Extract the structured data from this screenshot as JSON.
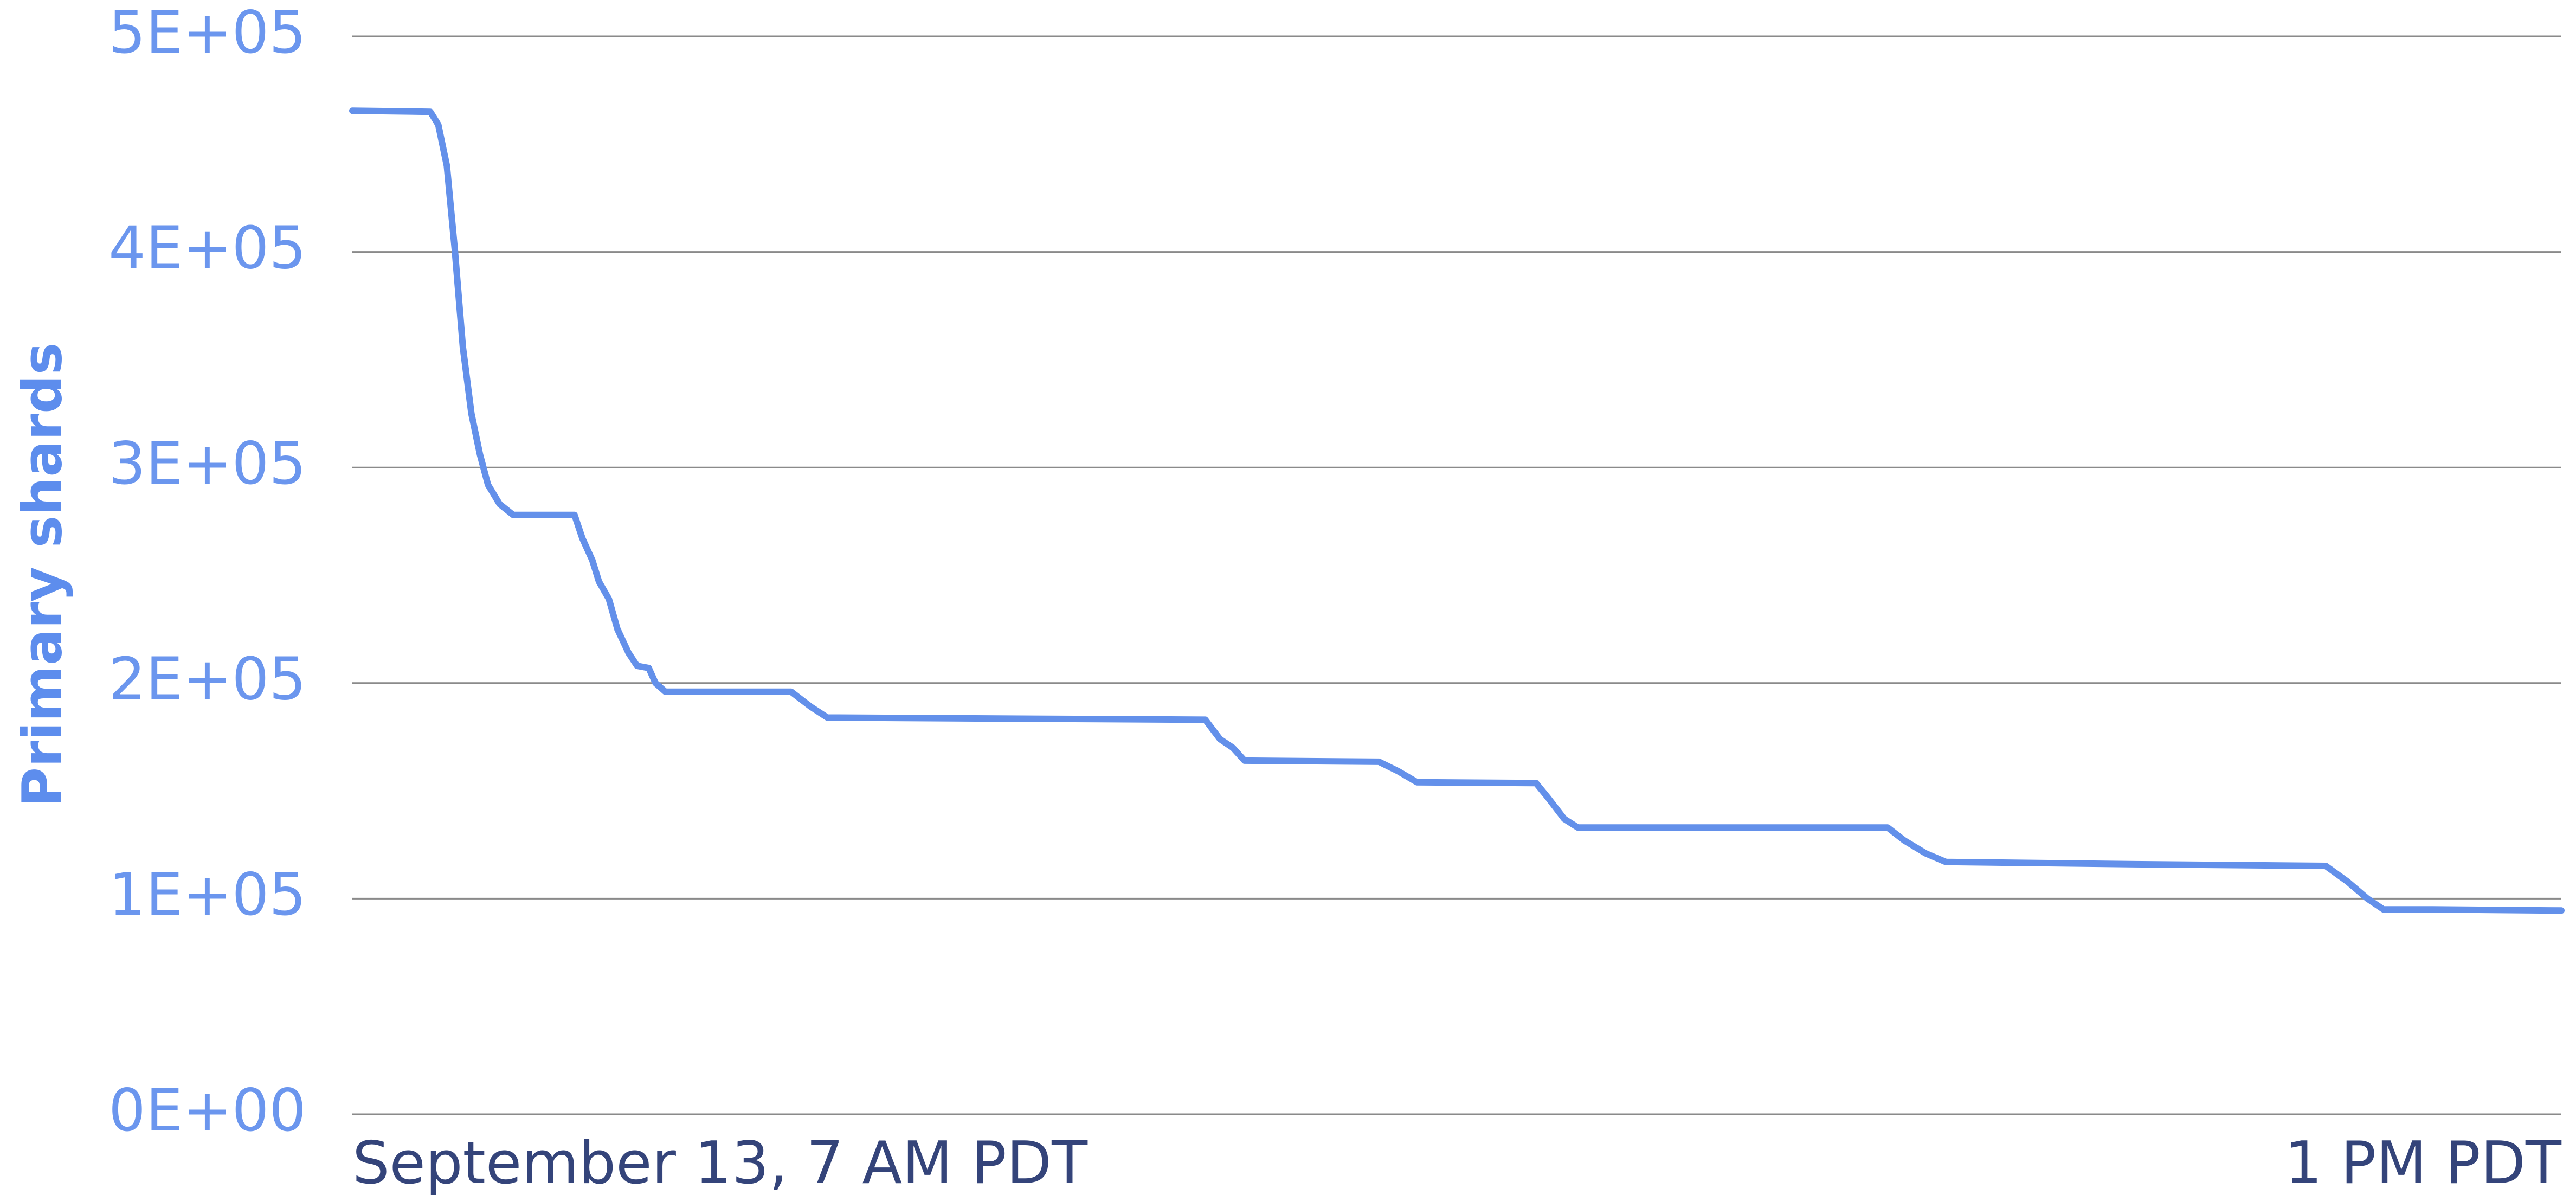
{
  "chart_data": {
    "type": "line",
    "y_label": "Primary shards",
    "x": [
      0,
      12.7,
      14,
      15.4,
      16.7,
      18,
      19.4,
      20.8,
      22.1,
      24,
      26.2,
      36.2,
      37.5,
      39.1,
      40.2,
      41.8,
      43.2,
      45,
      46.4,
      48.3,
      49.4,
      51,
      71.5,
      74.7,
      77.4,
      139,
      141.4,
      143.5,
      145.4,
      167.3,
      170.5,
      173.5,
      192.9,
      194.8,
      197.5,
      199.7,
      250.2,
      252.9,
      256.4,
      259.7,
      289.4,
      321.6,
      325.1,
      328.4,
      331,
      339,
      360
    ],
    "series": [
      {
        "name": "Primary shards",
        "color": "#6390ea",
        "values": [
          465500,
          465000,
          459000,
          440000,
          401000,
          356000,
          325000,
          306000,
          292000,
          283000,
          278000,
          278000,
          267000,
          257000,
          247000,
          239000,
          225000,
          214000,
          208000,
          207000,
          200000,
          196000,
          196000,
          189000,
          184000,
          183000,
          174000,
          170000,
          164000,
          163500,
          159000,
          154000,
          153600,
          147000,
          137000,
          133000,
          133000,
          127000,
          121000,
          117000,
          116000,
          115200,
          108000,
          100000,
          95000,
          95000,
          94500
        ]
      }
    ],
    "xlim": [
      0,
      360
    ],
    "xticks": [
      {
        "value": 0,
        "label": "September 13, 7 AM PDT"
      },
      {
        "value": 360,
        "label": "1 PM PDT"
      }
    ],
    "ylim": [
      0,
      500000
    ],
    "yticks": [
      {
        "value": 0,
        "label": "0E+00"
      },
      {
        "value": 100000,
        "label": "1E+05"
      },
      {
        "value": 200000,
        "label": "2E+05"
      },
      {
        "value": 300000,
        "label": "3E+05"
      },
      {
        "value": 400000,
        "label": "4E+05"
      },
      {
        "value": 500000,
        "label": "5E+05"
      }
    ],
    "grid": true
  }
}
